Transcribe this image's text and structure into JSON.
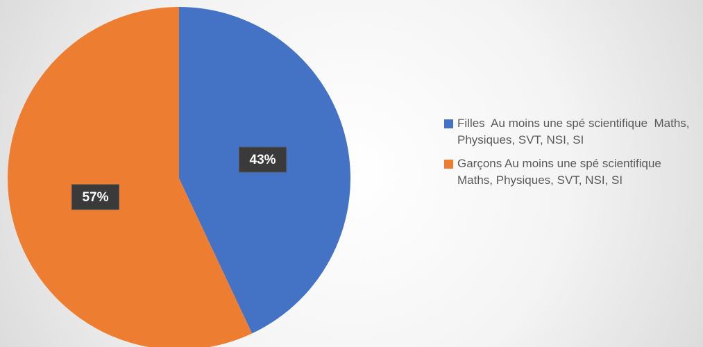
{
  "chart_data": {
    "type": "pie",
    "categories": [
      "Filles  Au moins une spé scientifique  Maths, Physiques, SVT, NSI, SI",
      "Garçons Au moins une spé scientifique  Maths, Physiques, SVT, NSI, SI"
    ],
    "values": [
      43,
      57
    ],
    "value_labels": [
      "43%",
      "57%"
    ],
    "colors": [
      "#4472c4",
      "#ed7d31"
    ],
    "legend": "right"
  }
}
